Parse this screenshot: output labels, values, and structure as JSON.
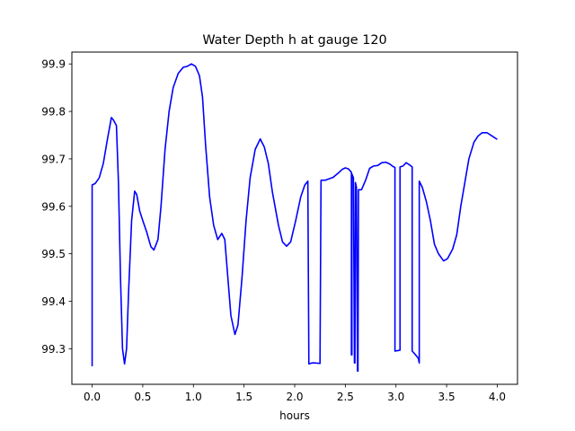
{
  "chart_data": {
    "type": "line",
    "title": "Water Depth h at gauge 120",
    "xlabel": "hours",
    "ylabel": "",
    "xlim": [
      -0.2,
      4.2
    ],
    "ylim": [
      99.225,
      99.925
    ],
    "xticks": [
      0.0,
      0.5,
      1.0,
      1.5,
      2.0,
      2.5,
      3.0,
      3.5,
      4.0
    ],
    "xtick_labels": [
      "0.0",
      "0.5",
      "1.0",
      "1.5",
      "2.0",
      "2.5",
      "3.0",
      "3.5",
      "4.0"
    ],
    "yticks": [
      99.3,
      99.4,
      99.5,
      99.6,
      99.7,
      99.8,
      99.9
    ],
    "ytick_labels": [
      "99.3",
      "99.4",
      "99.5",
      "99.6",
      "99.7",
      "99.8",
      "99.9"
    ],
    "grid": false,
    "legend": false,
    "series": [
      {
        "color": "#0000ff",
        "points": [
          [
            0.0,
            99.263
          ],
          [
            0.0,
            99.645
          ],
          [
            0.03,
            99.648
          ],
          [
            0.07,
            99.66
          ],
          [
            0.11,
            99.69
          ],
          [
            0.15,
            99.74
          ],
          [
            0.19,
            99.787
          ],
          [
            0.21,
            99.782
          ],
          [
            0.24,
            99.77
          ],
          [
            0.26,
            99.65
          ],
          [
            0.28,
            99.45
          ],
          [
            0.3,
            99.3
          ],
          [
            0.32,
            99.268
          ],
          [
            0.34,
            99.3
          ],
          [
            0.36,
            99.42
          ],
          [
            0.39,
            99.57
          ],
          [
            0.42,
            99.632
          ],
          [
            0.44,
            99.625
          ],
          [
            0.47,
            99.59
          ],
          [
            0.5,
            99.57
          ],
          [
            0.54,
            99.545
          ],
          [
            0.58,
            99.515
          ],
          [
            0.61,
            99.508
          ],
          [
            0.65,
            99.53
          ],
          [
            0.68,
            99.6
          ],
          [
            0.72,
            99.72
          ],
          [
            0.76,
            99.8
          ],
          [
            0.8,
            99.85
          ],
          [
            0.85,
            99.88
          ],
          [
            0.9,
            99.893
          ],
          [
            0.94,
            99.895
          ],
          [
            0.98,
            99.9
          ],
          [
            1.02,
            99.895
          ],
          [
            1.06,
            99.875
          ],
          [
            1.09,
            99.83
          ],
          [
            1.12,
            99.73
          ],
          [
            1.16,
            99.62
          ],
          [
            1.2,
            99.56
          ],
          [
            1.24,
            99.53
          ],
          [
            1.28,
            99.543
          ],
          [
            1.31,
            99.53
          ],
          [
            1.34,
            99.45
          ],
          [
            1.37,
            99.37
          ],
          [
            1.41,
            99.33
          ],
          [
            1.44,
            99.35
          ],
          [
            1.48,
            99.45
          ],
          [
            1.52,
            99.57
          ],
          [
            1.56,
            99.66
          ],
          [
            1.61,
            99.72
          ],
          [
            1.66,
            99.742
          ],
          [
            1.7,
            99.725
          ],
          [
            1.74,
            99.69
          ],
          [
            1.78,
            99.63
          ],
          [
            1.84,
            99.56
          ],
          [
            1.88,
            99.525
          ],
          [
            1.92,
            99.516
          ],
          [
            1.96,
            99.525
          ],
          [
            2.01,
            99.57
          ],
          [
            2.06,
            99.62
          ],
          [
            2.1,
            99.645
          ],
          [
            2.13,
            99.653
          ],
          [
            2.14,
            99.268
          ],
          [
            2.17,
            99.27
          ],
          [
            2.2,
            99.27
          ],
          [
            2.25,
            99.269
          ],
          [
            2.26,
            99.655
          ],
          [
            2.3,
            99.655
          ],
          [
            2.34,
            99.658
          ],
          [
            2.38,
            99.661
          ],
          [
            2.43,
            99.67
          ],
          [
            2.47,
            99.678
          ],
          [
            2.5,
            99.681
          ],
          [
            2.53,
            99.679
          ],
          [
            2.56,
            99.672
          ],
          [
            2.56,
            99.287
          ],
          [
            2.565,
            99.287
          ],
          [
            2.565,
            99.668
          ],
          [
            2.58,
            99.66
          ],
          [
            2.59,
            99.27
          ],
          [
            2.595,
            99.27
          ],
          [
            2.6,
            99.65
          ],
          [
            2.61,
            99.64
          ],
          [
            2.62,
            99.253
          ],
          [
            2.625,
            99.253
          ],
          [
            2.63,
            99.635
          ],
          [
            2.66,
            99.635
          ],
          [
            2.7,
            99.655
          ],
          [
            2.74,
            99.68
          ],
          [
            2.78,
            99.685
          ],
          [
            2.82,
            99.686
          ],
          [
            2.86,
            99.692
          ],
          [
            2.9,
            99.693
          ],
          [
            2.94,
            99.689
          ],
          [
            2.97,
            99.684
          ],
          [
            2.99,
            99.682
          ],
          [
            2.99,
            99.295
          ],
          [
            3.02,
            99.296
          ],
          [
            3.04,
            99.297
          ],
          [
            3.04,
            99.683
          ],
          [
            3.07,
            99.685
          ],
          [
            3.1,
            99.692
          ],
          [
            3.13,
            99.688
          ],
          [
            3.16,
            99.683
          ],
          [
            3.16,
            99.295
          ],
          [
            3.19,
            99.288
          ],
          [
            3.22,
            99.28
          ],
          [
            3.23,
            99.27
          ],
          [
            3.23,
            99.653
          ],
          [
            3.26,
            99.64
          ],
          [
            3.3,
            99.61
          ],
          [
            3.34,
            99.57
          ],
          [
            3.38,
            99.52
          ],
          [
            3.42,
            99.5
          ],
          [
            3.47,
            99.485
          ],
          [
            3.51,
            99.49
          ],
          [
            3.56,
            99.51
          ],
          [
            3.6,
            99.54
          ],
          [
            3.64,
            99.6
          ],
          [
            3.68,
            99.65
          ],
          [
            3.72,
            99.7
          ],
          [
            3.77,
            99.735
          ],
          [
            3.81,
            99.748
          ],
          [
            3.85,
            99.755
          ],
          [
            3.9,
            99.755
          ],
          [
            3.95,
            99.748
          ],
          [
            4.0,
            99.741
          ]
        ]
      }
    ]
  }
}
